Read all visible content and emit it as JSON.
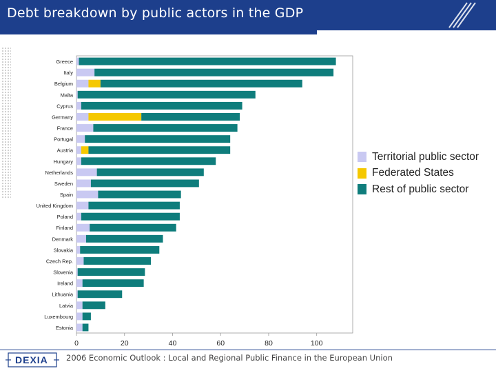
{
  "header": {
    "title": "Debt breakdown by public actors in the GDP"
  },
  "footer": {
    "text": "2006 Economic Outlook : Local and Regional Public Finance in the European Union"
  },
  "logo": {
    "text": "DEXIA"
  },
  "colors": {
    "territorial": "#c9c9f2",
    "federated": "#f5c800",
    "rest": "#0f7d7c",
    "brand": "#1d3f8c"
  },
  "chart_data": {
    "type": "bar",
    "orientation": "horizontal",
    "stacked": true,
    "title": "Debt breakdown by public actors in the GDP",
    "xlabel": "",
    "ylabel": "",
    "xlim": [
      0,
      115
    ],
    "xticks": [
      0,
      20,
      40,
      60,
      80,
      100
    ],
    "legend_position": "right",
    "categories": [
      "Greece",
      "Italy",
      "Belgium",
      "Malta",
      "Cyprus",
      "Germany",
      "France",
      "Portugal",
      "Austria",
      "Hungary",
      "Netherlands",
      "Sweden",
      "Spain",
      "United Kingdom",
      "Poland",
      "Finland",
      "Denmark",
      "Slovakia",
      "Czech Rep.",
      "Slovenia",
      "Ireland",
      "Lithuania",
      "Latvia",
      "Luxembourg",
      "Estonia"
    ],
    "series": [
      {
        "name": "Territorial public sector",
        "values": [
          1,
          7.5,
          5,
          0.5,
          2,
          5,
          7,
          3.5,
          2,
          2,
          8.5,
          6,
          9,
          5,
          2,
          5.5,
          4,
          1.5,
          3,
          0.5,
          2.5,
          0.5,
          2.5,
          2.5,
          2.5
        ]
      },
      {
        "name": "Federated States",
        "values": [
          0,
          0,
          5,
          0,
          0,
          22,
          0,
          0,
          3,
          0,
          0,
          0,
          0,
          0,
          0,
          0,
          0,
          0,
          0,
          0,
          0,
          0,
          0,
          0,
          0
        ]
      },
      {
        "name": "Rest of public sector",
        "values": [
          107,
          99.5,
          84,
          74,
          67,
          41,
          60,
          60.5,
          59,
          56,
          44.5,
          45,
          34.5,
          38,
          41,
          36,
          32,
          33,
          28,
          28,
          25.5,
          18.5,
          9.5,
          3.5,
          2.5
        ]
      }
    ]
  }
}
